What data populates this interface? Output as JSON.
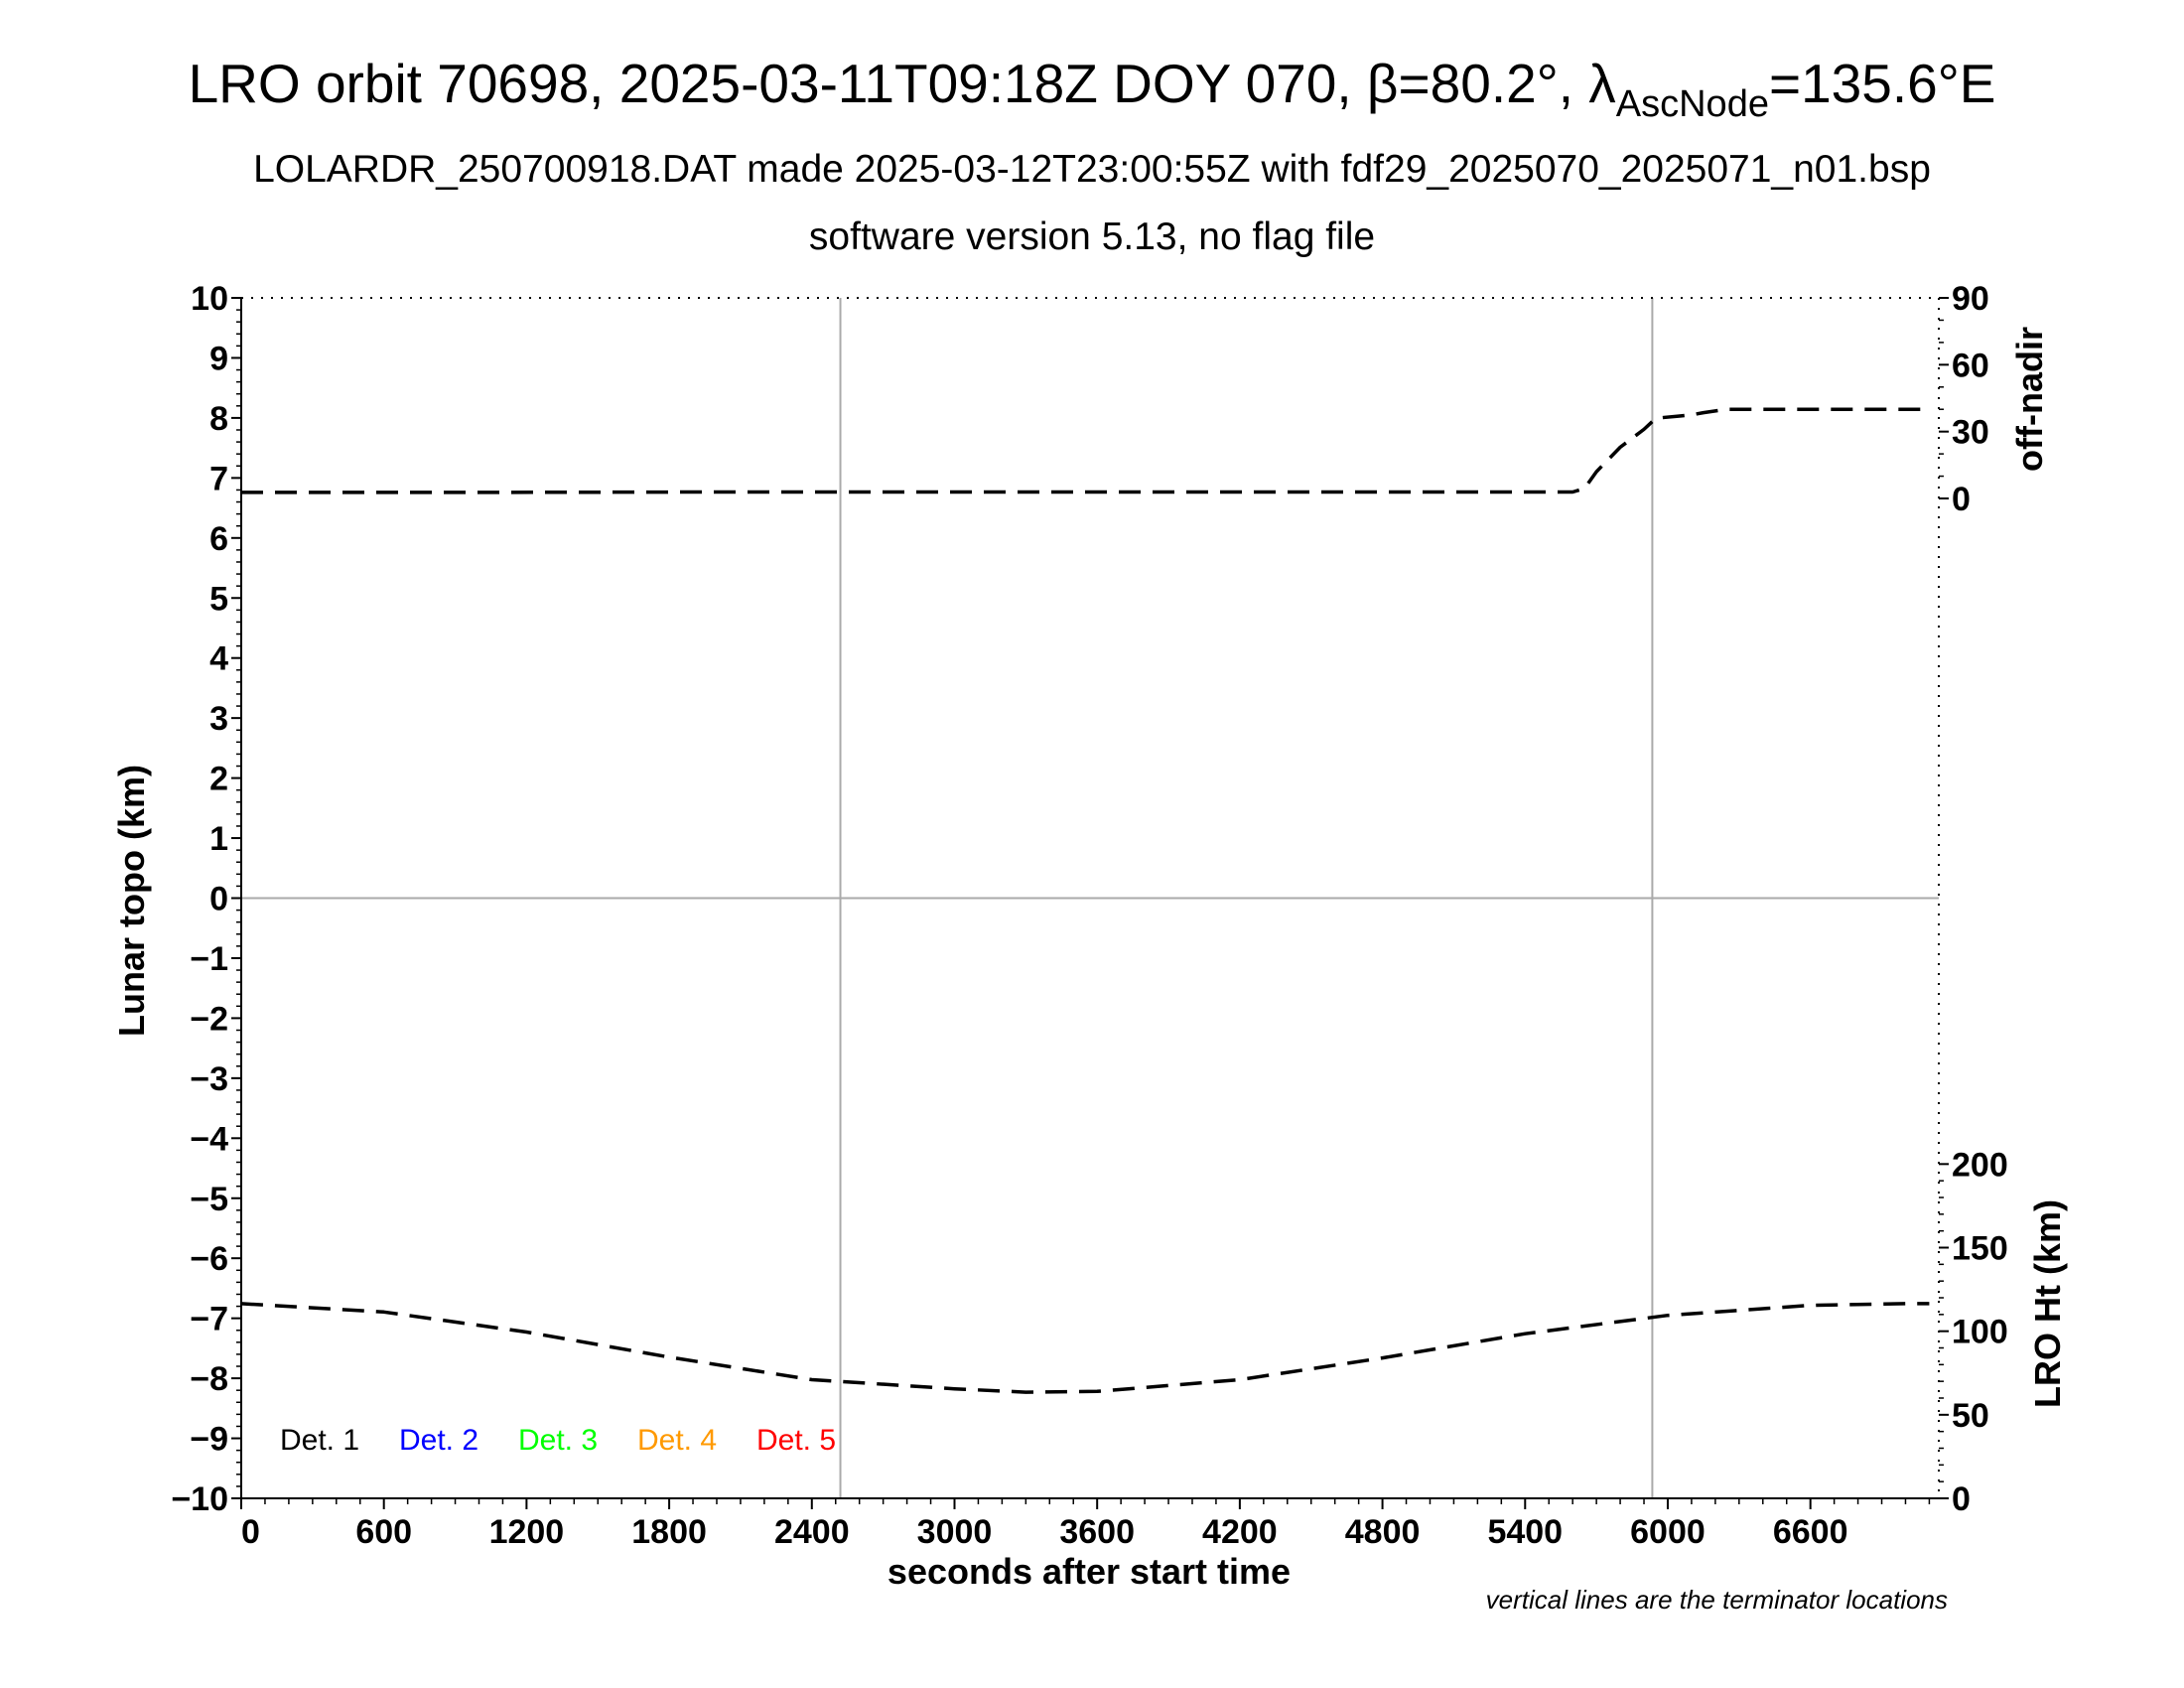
{
  "title": {
    "prefix": "LRO orbit 70698, 2025-03-11T09:18Z DOY 070, β=80.2°, λ",
    "sub": "AscNode",
    "suffix": "=135.6°E"
  },
  "subtitle1": "LOLARDR_250700918.DAT made 2025-03-12T23:00:55Z with fdf29_2025070_2025071_n01.bsp",
  "subtitle2": "software version 5.13, no flag file",
  "note": "vertical lines are the terminator locations",
  "chart_data": {
    "type": "line",
    "xlabel": "seconds after start time",
    "ylabel": "Lunar topo (km)",
    "ylabel_right_top": "off-nadir",
    "ylabel_right_bottom": "LRO Ht (km)",
    "xlim": [
      0,
      7140
    ],
    "ylim": [
      -10,
      10
    ],
    "x_ticks": [
      0,
      600,
      1200,
      1800,
      2400,
      3000,
      3600,
      4200,
      4800,
      5400,
      6000,
      6600
    ],
    "y_ticks": [
      10,
      9,
      8,
      7,
      6,
      5,
      4,
      3,
      2,
      1,
      0,
      -1,
      -2,
      -3,
      -4,
      -5,
      -6,
      -7,
      -8,
      -9,
      -10
    ],
    "y_tick_labels": [
      "10",
      "9",
      "8",
      "7",
      "6",
      "5",
      "4",
      "3",
      "2",
      "1",
      "0",
      "−1",
      "−2",
      "−3",
      "−4",
      "−5",
      "−6",
      "−7",
      "−8",
      "−9",
      "−10"
    ],
    "right_top_axis": {
      "ticks": [
        0,
        30,
        60,
        90
      ],
      "range": [
        0,
        90
      ]
    },
    "right_bottom_axis": {
      "ticks": [
        0,
        50,
        100,
        150,
        200
      ],
      "range": [
        0,
        300
      ]
    },
    "terminator_lines_x": [
      2520,
      5935
    ],
    "zero_line": true,
    "legend": [
      {
        "label": "Det. 1",
        "color": "#000000"
      },
      {
        "label": "Det. 2",
        "color": "#0000ff"
      },
      {
        "label": "Det. 3",
        "color": "#00ff00"
      },
      {
        "label": "Det. 4",
        "color": "#ff9900"
      },
      {
        "label": "Det. 5",
        "color": "#ff0000"
      }
    ],
    "series": [
      {
        "name": "off-nadir",
        "axis": "right_top",
        "style": "dashed",
        "color": "#000000",
        "x": [
          0,
          1000,
          2000,
          3000,
          4000,
          5000,
          5600,
          5650,
          5700,
          5800,
          5900,
          5950,
          6050,
          6100,
          6150,
          6250,
          6300,
          6500,
          7000,
          7100
        ],
        "y": [
          2.7,
          2.7,
          2.9,
          2.9,
          2.9,
          2.9,
          2.9,
          4.5,
          12,
          23,
          31,
          36,
          37,
          37.5,
          38.5,
          40,
          40,
          40,
          40,
          40
        ]
      },
      {
        "name": "LRO Ht (km)",
        "axis": "right_bottom",
        "style": "dashed",
        "color": "#000000",
        "x": [
          0,
          600,
          1200,
          1800,
          2400,
          3000,
          3300,
          3600,
          4200,
          4800,
          5400,
          6000,
          6600,
          7000,
          7100
        ],
        "y": [
          116.5,
          111.5,
          99.5,
          84.5,
          71,
          65.5,
          63.5,
          64,
          71,
          84,
          98.5,
          109.5,
          115.5,
          116.5,
          116.5
        ]
      }
    ]
  }
}
